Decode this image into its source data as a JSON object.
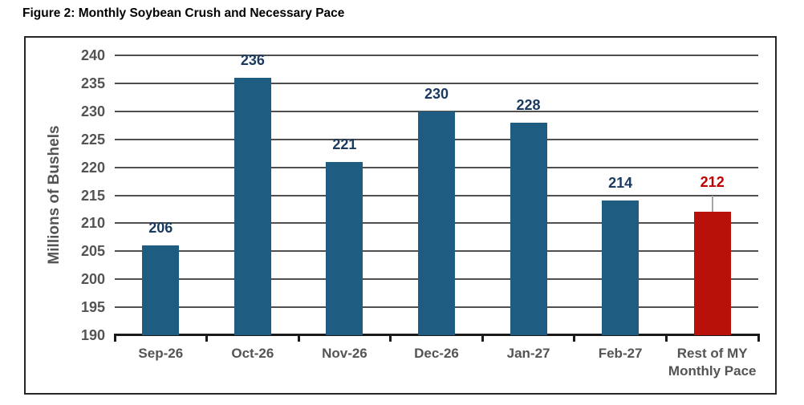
{
  "figure": {
    "caption": "Figure 2: Monthly Soybean Crush and Necessary Pace"
  },
  "chart_data": {
    "type": "bar",
    "title": "Figure 2: Monthly Soybean Crush and Necessary Pace",
    "categories": [
      "Sep-26",
      "Oct-26",
      "Nov-26",
      "Dec-26",
      "Jan-27",
      "Feb-27",
      "Rest of MY\nMonthly Pace"
    ],
    "values": [
      206,
      236,
      221,
      230,
      228,
      214,
      212
    ],
    "bar_styles": [
      "blue",
      "blue",
      "blue",
      "blue",
      "blue",
      "blue",
      "red"
    ],
    "highlight_index": 6,
    "value_labels_shown": true,
    "xlabel": "",
    "ylabel": "Millions of Bushels",
    "ylim": [
      190,
      240
    ],
    "ytick_step": 5,
    "yticks": [
      190,
      195,
      200,
      205,
      210,
      215,
      220,
      225,
      230,
      235,
      240
    ],
    "grid": true,
    "legend": "none",
    "colors": {
      "bar_blue": "#1F5C82",
      "bar_red": "#B81109",
      "value_label_blue": "#1B3A5E",
      "value_label_red": "#C00000",
      "axis_text": "#545454",
      "gridline": "#4F4F4F",
      "axis_line": "#1A1A1A",
      "leader_line": "#A6A6A6",
      "frame_border": "#262626",
      "title_text": "#000000"
    }
  }
}
